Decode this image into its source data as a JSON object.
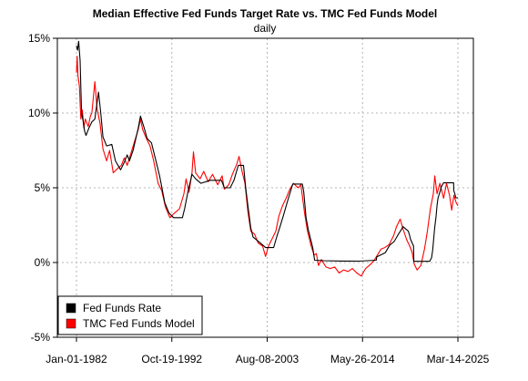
{
  "chart_data": {
    "type": "line",
    "title": "Median Effective Fed Funds Target Rate vs. TMC Fed Funds Model",
    "subtitle": "daily",
    "x_tick_labels": [
      "Jan-01-1982",
      "Oct-19-1992",
      "Aug-08-2003",
      "May-26-2014",
      "Mar-14-2025"
    ],
    "x_range": [
      "1982-01-01",
      "2025-03-14"
    ],
    "y_tick_labels": [
      "-5%",
      "0%",
      "5%",
      "10%",
      "15%"
    ],
    "y_ticks": [
      -5,
      0,
      5,
      10,
      15
    ],
    "ylim": [
      -5,
      15
    ],
    "grid": true,
    "legend_position": "bottom-left",
    "series": [
      {
        "name": "Fed Funds Rate",
        "color": "#000000",
        "points": [
          [
            "1982-01-01",
            14.5
          ],
          [
            "1982-02-15",
            14.2
          ],
          [
            "1982-04-01",
            14.8
          ],
          [
            "1982-06-01",
            13.5
          ],
          [
            "1982-08-01",
            10.0
          ],
          [
            "1982-10-01",
            9.5
          ],
          [
            "1982-12-01",
            8.8
          ],
          [
            "1983-02-01",
            8.5
          ],
          [
            "1983-06-01",
            9.0
          ],
          [
            "1983-10-01",
            9.4
          ],
          [
            "1984-02-01",
            9.6
          ],
          [
            "1984-07-01",
            11.4
          ],
          [
            "1984-10-01",
            10.0
          ],
          [
            "1985-01-01",
            8.4
          ],
          [
            "1985-06-01",
            7.8
          ],
          [
            "1986-01-01",
            7.9
          ],
          [
            "1986-06-01",
            6.8
          ],
          [
            "1987-01-01",
            6.2
          ],
          [
            "1987-06-01",
            6.7
          ],
          [
            "1987-10-01",
            7.2
          ],
          [
            "1988-01-01",
            6.8
          ],
          [
            "1988-06-01",
            7.5
          ],
          [
            "1989-01-01",
            9.0
          ],
          [
            "1989-04-01",
            9.8
          ],
          [
            "1989-09-01",
            9.0
          ],
          [
            "1990-01-01",
            8.3
          ],
          [
            "1990-07-01",
            8.0
          ],
          [
            "1991-01-01",
            6.8
          ],
          [
            "1991-06-01",
            5.8
          ],
          [
            "1992-01-01",
            4.0
          ],
          [
            "1992-07-01",
            3.3
          ],
          [
            "1993-01-01",
            3.0
          ],
          [
            "1994-01-01",
            3.0
          ],
          [
            "1994-04-01",
            3.6
          ],
          [
            "1994-08-01",
            4.6
          ],
          [
            "1995-02-01",
            5.9
          ],
          [
            "1995-07-01",
            5.6
          ],
          [
            "1996-02-01",
            5.3
          ],
          [
            "1997-03-01",
            5.5
          ],
          [
            "1998-06-01",
            5.5
          ],
          [
            "1998-10-01",
            5.0
          ],
          [
            "1999-06-01",
            5.0
          ],
          [
            "1999-11-01",
            5.5
          ],
          [
            "2000-05-01",
            6.5
          ],
          [
            "2000-12-01",
            6.5
          ],
          [
            "2001-03-01",
            5.0
          ],
          [
            "2001-06-01",
            3.8
          ],
          [
            "2001-10-01",
            2.3
          ],
          [
            "2002-01-01",
            1.7
          ],
          [
            "2002-11-01",
            1.3
          ],
          [
            "2003-06-01",
            1.0
          ],
          [
            "2004-05-01",
            1.0
          ],
          [
            "2004-09-01",
            1.7
          ],
          [
            "2005-01-01",
            2.3
          ],
          [
            "2005-06-01",
            3.1
          ],
          [
            "2006-01-01",
            4.3
          ],
          [
            "2006-07-01",
            5.25
          ],
          [
            "2007-08-01",
            5.25
          ],
          [
            "2007-10-01",
            4.7
          ],
          [
            "2008-01-01",
            3.0
          ],
          [
            "2008-04-01",
            2.2
          ],
          [
            "2008-10-01",
            1.0
          ],
          [
            "2008-12-20",
            0.15
          ],
          [
            "2010-01-01",
            0.12
          ],
          [
            "2012-01-01",
            0.1
          ],
          [
            "2014-01-01",
            0.09
          ],
          [
            "2015-12-15",
            0.15
          ],
          [
            "2016-01-01",
            0.37
          ],
          [
            "2016-12-20",
            0.65
          ],
          [
            "2017-03-20",
            0.9
          ],
          [
            "2017-06-20",
            1.15
          ],
          [
            "2017-12-20",
            1.4
          ],
          [
            "2018-03-25",
            1.65
          ],
          [
            "2018-06-20",
            1.9
          ],
          [
            "2018-09-30",
            2.15
          ],
          [
            "2018-12-20",
            2.4
          ],
          [
            "2019-08-01",
            2.1
          ],
          [
            "2019-09-20",
            1.85
          ],
          [
            "2019-11-01",
            1.55
          ],
          [
            "2020-03-05",
            1.1
          ],
          [
            "2020-03-18",
            0.08
          ],
          [
            "2021-12-31",
            0.08
          ],
          [
            "2022-03-20",
            0.33
          ],
          [
            "2022-05-06",
            0.83
          ],
          [
            "2022-06-17",
            1.58
          ],
          [
            "2022-07-28",
            2.33
          ],
          [
            "2022-09-22",
            3.08
          ],
          [
            "2022-11-03",
            3.83
          ],
          [
            "2022-12-15",
            4.33
          ],
          [
            "2023-02-02",
            4.58
          ],
          [
            "2023-03-23",
            4.83
          ],
          [
            "2023-05-04",
            5.08
          ],
          [
            "2023-07-27",
            5.33
          ],
          [
            "2024-09-19",
            5.33
          ],
          [
            "2024-09-20",
            4.83
          ],
          [
            "2024-11-08",
            4.58
          ],
          [
            "2024-12-19",
            4.33
          ],
          [
            "2025-03-14",
            4.33
          ]
        ]
      },
      {
        "name": "TMC Fed Funds Model",
        "color": "#ff0000",
        "points": [
          [
            "1982-01-01",
            12.7
          ],
          [
            "1982-02-01",
            13.8
          ],
          [
            "1982-03-01",
            12.5
          ],
          [
            "1982-05-01",
            11.8
          ],
          [
            "1982-07-01",
            9.6
          ],
          [
            "1982-09-01",
            10.2
          ],
          [
            "1982-11-01",
            9.0
          ],
          [
            "1983-01-01",
            9.6
          ],
          [
            "1983-05-01",
            9.1
          ],
          [
            "1983-08-01",
            9.8
          ],
          [
            "1983-10-01",
            10.0
          ],
          [
            "1984-02-01",
            12.1
          ],
          [
            "1984-05-01",
            10.3
          ],
          [
            "1984-09-01",
            9.3
          ],
          [
            "1985-01-01",
            7.6
          ],
          [
            "1985-06-01",
            6.8
          ],
          [
            "1985-10-01",
            7.5
          ],
          [
            "1986-03-01",
            6.0
          ],
          [
            "1986-09-01",
            6.3
          ],
          [
            "1987-02-01",
            6.5
          ],
          [
            "1987-06-01",
            7.0
          ],
          [
            "1987-10-01",
            6.5
          ],
          [
            "1988-03-01",
            7.3
          ],
          [
            "1988-08-01",
            8.1
          ],
          [
            "1989-01-01",
            8.9
          ],
          [
            "1989-04-01",
            9.6
          ],
          [
            "1989-07-01",
            8.9
          ],
          [
            "1989-12-01",
            8.3
          ],
          [
            "1990-05-01",
            7.8
          ],
          [
            "1990-10-01",
            6.8
          ],
          [
            "1991-04-01",
            5.3
          ],
          [
            "1991-09-01",
            4.8
          ],
          [
            "1992-02-01",
            3.7
          ],
          [
            "1992-08-01",
            3.0
          ],
          [
            "1993-02-01",
            3.3
          ],
          [
            "1993-09-01",
            3.6
          ],
          [
            "1994-03-01",
            4.6
          ],
          [
            "1994-06-01",
            5.6
          ],
          [
            "1994-10-01",
            4.7
          ],
          [
            "1995-02-01",
            6.0
          ],
          [
            "1995-04-01",
            7.4
          ],
          [
            "1995-07-01",
            6.0
          ],
          [
            "1996-01-01",
            5.6
          ],
          [
            "1996-06-01",
            6.1
          ],
          [
            "1996-12-01",
            5.4
          ],
          [
            "1997-06-01",
            5.9
          ],
          [
            "1998-01-01",
            5.2
          ],
          [
            "1998-07-01",
            5.8
          ],
          [
            "1998-10-01",
            4.9
          ],
          [
            "1999-04-01",
            5.2
          ],
          [
            "1999-09-01",
            5.9
          ],
          [
            "2000-03-01",
            6.6
          ],
          [
            "2000-06-01",
            7.1
          ],
          [
            "2000-10-01",
            6.1
          ],
          [
            "2001-02-01",
            5.3
          ],
          [
            "2001-06-01",
            3.4
          ],
          [
            "2001-10-01",
            2.1
          ],
          [
            "2002-03-01",
            1.9
          ],
          [
            "2002-08-01",
            1.3
          ],
          [
            "2003-02-01",
            1.1
          ],
          [
            "2003-06-01",
            0.4
          ],
          [
            "2003-10-01",
            1.1
          ],
          [
            "2004-03-01",
            1.6
          ],
          [
            "2004-08-01",
            2.1
          ],
          [
            "2004-12-01",
            3.1
          ],
          [
            "2005-05-01",
            3.8
          ],
          [
            "2005-10-01",
            4.3
          ],
          [
            "2006-03-01",
            4.9
          ],
          [
            "2006-08-01",
            5.3
          ],
          [
            "2007-02-01",
            5.0
          ],
          [
            "2007-06-01",
            5.2
          ],
          [
            "2007-11-01",
            3.3
          ],
          [
            "2008-03-01",
            2.1
          ],
          [
            "2008-08-01",
            1.1
          ],
          [
            "2008-12-01",
            0.5
          ],
          [
            "2009-03-01",
            0.6
          ],
          [
            "2009-06-01",
            -0.2
          ],
          [
            "2009-10-01",
            0.2
          ],
          [
            "2010-04-01",
            -0.3
          ],
          [
            "2010-10-01",
            -0.4
          ],
          [
            "2011-04-01",
            -0.3
          ],
          [
            "2011-10-01",
            -0.7
          ],
          [
            "2012-04-01",
            -0.5
          ],
          [
            "2012-10-01",
            -0.6
          ],
          [
            "2013-04-01",
            -0.4
          ],
          [
            "2013-10-01",
            -0.7
          ],
          [
            "2014-04-01",
            -0.9
          ],
          [
            "2014-10-01",
            -0.4
          ],
          [
            "2015-03-01",
            -0.2
          ],
          [
            "2015-09-01",
            0.1
          ],
          [
            "2016-02-01",
            0.5
          ],
          [
            "2016-07-01",
            0.9
          ],
          [
            "2016-12-01",
            1.0
          ],
          [
            "2017-06-01",
            1.2
          ],
          [
            "2017-12-01",
            1.8
          ],
          [
            "2018-04-01",
            2.4
          ],
          [
            "2018-09-01",
            2.9
          ],
          [
            "2019-01-01",
            2.2
          ],
          [
            "2019-06-01",
            1.5
          ],
          [
            "2019-10-01",
            1.1
          ],
          [
            "2020-01-01",
            0.7
          ],
          [
            "2020-04-01",
            -0.1
          ],
          [
            "2020-08-01",
            -0.5
          ],
          [
            "2021-01-01",
            -0.2
          ],
          [
            "2021-06-01",
            0.9
          ],
          [
            "2021-10-01",
            2.1
          ],
          [
            "2022-02-01",
            3.6
          ],
          [
            "2022-06-01",
            4.6
          ],
          [
            "2022-08-01",
            5.8
          ],
          [
            "2022-11-01",
            4.6
          ],
          [
            "2023-03-01",
            5.3
          ],
          [
            "2023-08-01",
            4.3
          ],
          [
            "2023-12-01",
            5.3
          ],
          [
            "2024-04-01",
            4.5
          ],
          [
            "2024-07-01",
            3.5
          ],
          [
            "2024-10-01",
            4.5
          ],
          [
            "2025-01-01",
            4.0
          ],
          [
            "2025-03-14",
            3.8
          ]
        ]
      }
    ]
  }
}
